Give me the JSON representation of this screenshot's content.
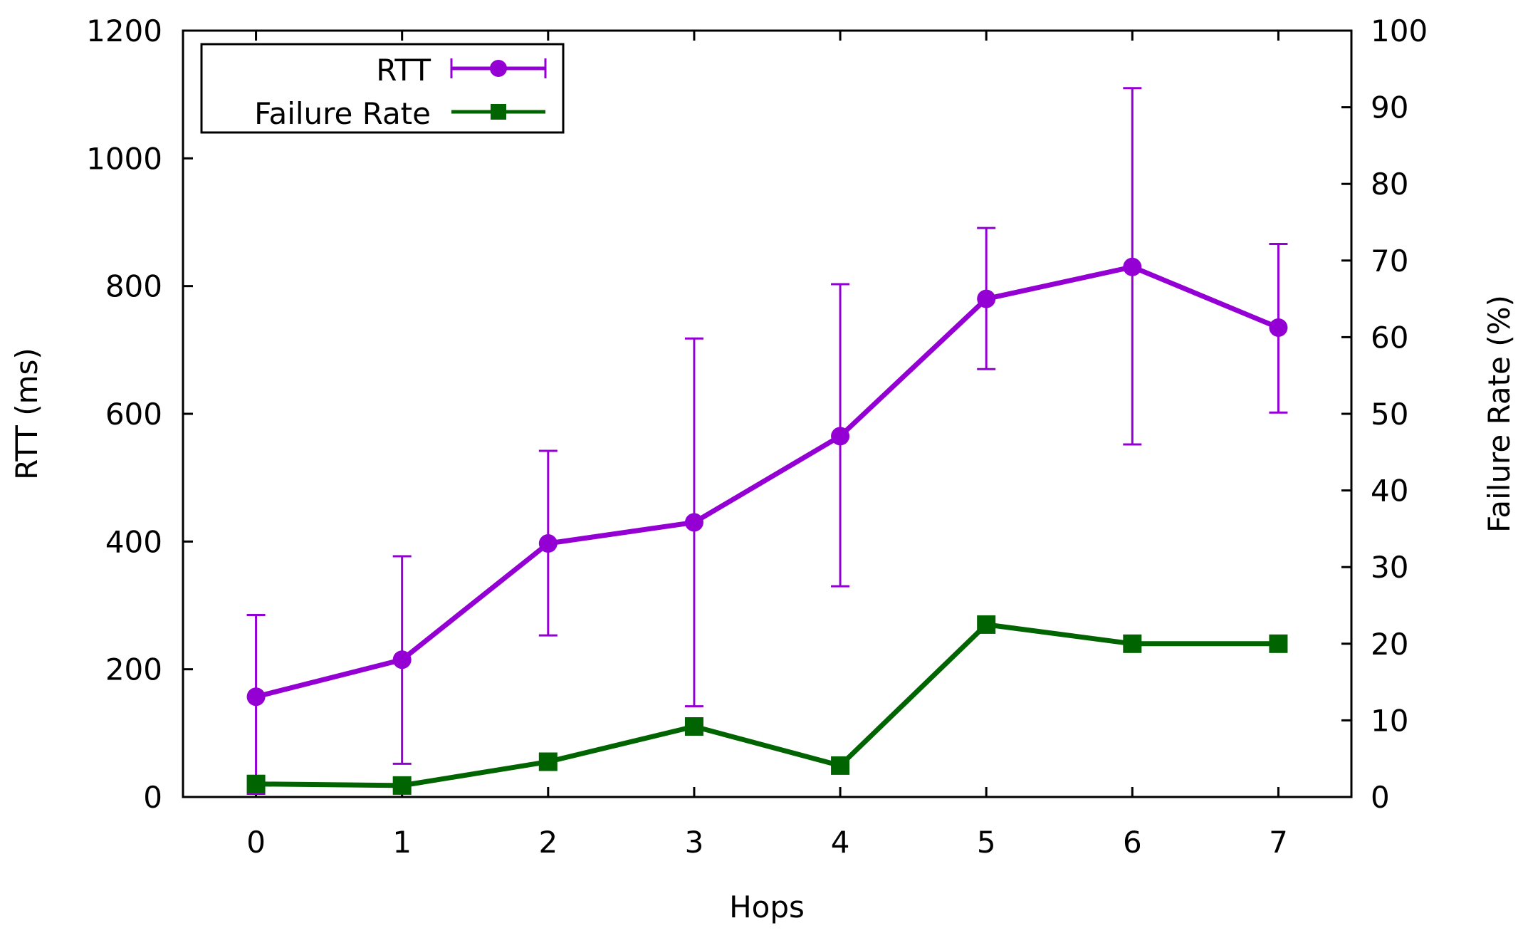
{
  "chart_data": {
    "type": "line",
    "x": [
      0,
      1,
      2,
      3,
      4,
      5,
      6,
      7
    ],
    "xlabel": "Hops",
    "ylabel": "RTT (ms)",
    "y2label": "Failure Rate (%)",
    "xlim": [
      -0.5,
      7.5
    ],
    "ylim": [
      0,
      1200
    ],
    "y2lim": [
      0,
      100
    ],
    "xticks": [
      "0",
      "1",
      "2",
      "3",
      "4",
      "5",
      "6",
      "7"
    ],
    "yticks": [
      "0",
      "200",
      "400",
      "600",
      "800",
      "1000",
      "1200"
    ],
    "y2ticks": [
      "0",
      "10",
      "20",
      "30",
      "40",
      "50",
      "60",
      "70",
      "80",
      "90",
      "100"
    ],
    "grid": false,
    "legend_position": "top-left",
    "series": [
      {
        "name": "RTT",
        "axis": "left",
        "color": "#9400d3",
        "marker": "circle",
        "error_bars": true,
        "values": [
          157,
          215,
          397,
          430,
          565,
          780,
          830,
          735
        ],
        "error_low": [
          5,
          52,
          253,
          142,
          330,
          670,
          552,
          602
        ],
        "error_high": [
          285,
          377,
          542,
          718,
          803,
          891,
          1110,
          866
        ]
      },
      {
        "name": "Failure Rate",
        "axis": "right",
        "color": "#006400",
        "marker": "square",
        "error_bars": false,
        "values": [
          1.7,
          1.5,
          4.6,
          9.2,
          4.1,
          22.5,
          20.0,
          20.0
        ]
      }
    ]
  }
}
